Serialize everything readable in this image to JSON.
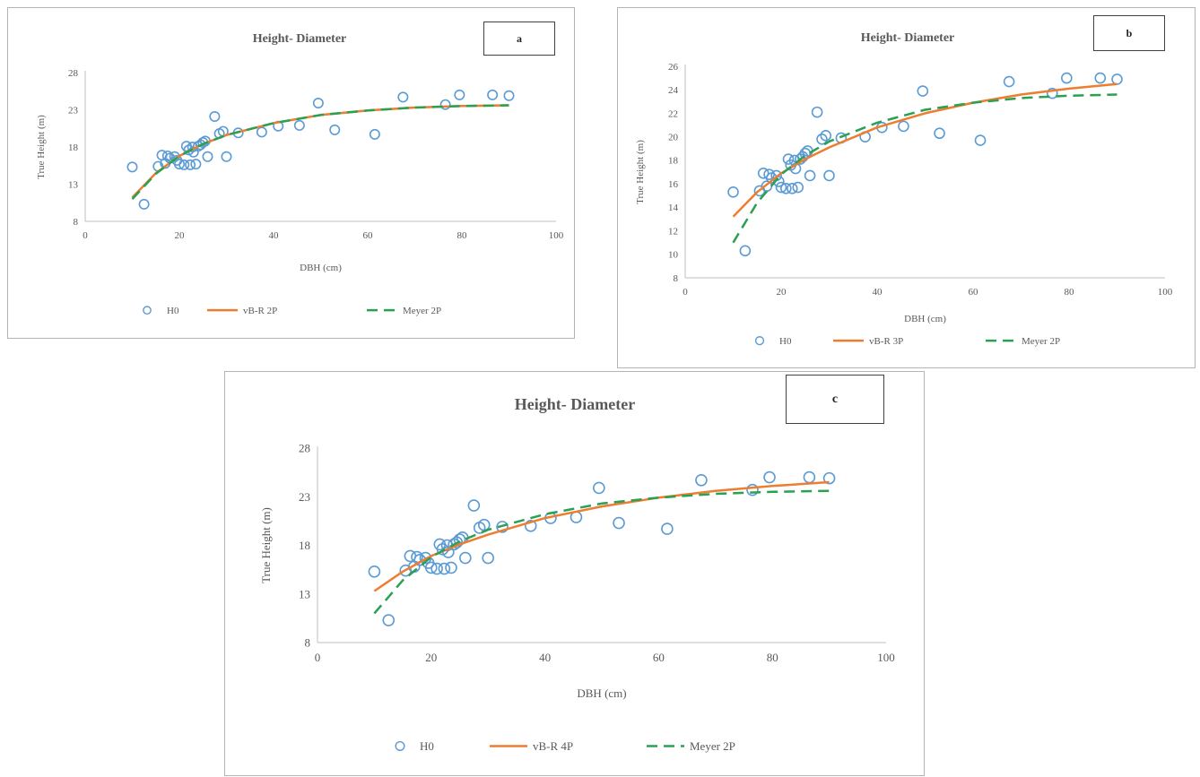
{
  "colors": {
    "points": "#5b9bd5",
    "vbr": "#ed7d31",
    "meyer": "#2aa052",
    "axis": "#bfbfbf",
    "text": "#595959"
  },
  "chart_data": [
    {
      "type": "scatter",
      "panel_label": "a",
      "title": "Height- Diameter",
      "xlabel": "DBH (cm)",
      "ylabel": "True Height (m)",
      "xlim": [
        0,
        100
      ],
      "ylim": [
        8,
        28
      ],
      "x_ticks": [
        "0",
        "20",
        "40",
        "60",
        "80",
        "100"
      ],
      "y_ticks": [
        "8",
        "13",
        "18",
        "23",
        "28"
      ],
      "grid": false,
      "legend_position": "bottom",
      "series": [
        {
          "name": "H0",
          "kind": "points",
          "points": [
            [
              10,
              15.3
            ],
            [
              12.5,
              10.3
            ],
            [
              15.5,
              15.4
            ],
            [
              16.3,
              16.9
            ],
            [
              17,
              15.8
            ],
            [
              17.5,
              16.8
            ],
            [
              18,
              16.5
            ],
            [
              19,
              16.7
            ],
            [
              19.5,
              16.2
            ],
            [
              20,
              15.7
            ],
            [
              21,
              15.6
            ],
            [
              21.5,
              18.1
            ],
            [
              22,
              17.6
            ],
            [
              22.3,
              15.6
            ],
            [
              22.8,
              18
            ],
            [
              23,
              17.3
            ],
            [
              23.5,
              15.7
            ],
            [
              24,
              18.1
            ],
            [
              24.5,
              18.3
            ],
            [
              25,
              18.6
            ],
            [
              25.5,
              18.8
            ],
            [
              26,
              16.7
            ],
            [
              27.5,
              22.1
            ],
            [
              28.5,
              19.8
            ],
            [
              29.3,
              20.1
            ],
            [
              30,
              16.7
            ],
            [
              32.5,
              19.9
            ],
            [
              37.5,
              20
            ],
            [
              41,
              20.8
            ],
            [
              45.5,
              20.9
            ],
            [
              49.5,
              23.9
            ],
            [
              53,
              20.3
            ],
            [
              61.5,
              19.7
            ],
            [
              67.5,
              24.7
            ],
            [
              76.5,
              23.7
            ],
            [
              79.5,
              25
            ],
            [
              86.5,
              25
            ],
            [
              90,
              24.9
            ]
          ]
        },
        {
          "name": "vB-R 2P",
          "kind": "line",
          "points": [
            [
              10,
              11.2
            ],
            [
              15,
              14.5
            ],
            [
              20,
              16.8
            ],
            [
              25,
              18.4
            ],
            [
              30,
              19.6
            ],
            [
              40,
              21.2
            ],
            [
              50,
              22.3
            ],
            [
              60,
              22.9
            ],
            [
              70,
              23.3
            ],
            [
              80,
              23.5
            ],
            [
              90,
              23.6
            ]
          ]
        },
        {
          "name": "Meyer 2P",
          "kind": "dash",
          "points": [
            [
              10,
              11
            ],
            [
              15,
              14.4
            ],
            [
              20,
              16.8
            ],
            [
              25,
              18.4
            ],
            [
              30,
              19.6
            ],
            [
              40,
              21.2
            ],
            [
              50,
              22.3
            ],
            [
              60,
              22.9
            ],
            [
              70,
              23.3
            ],
            [
              80,
              23.5
            ],
            [
              90,
              23.6
            ]
          ]
        }
      ]
    },
    {
      "type": "scatter",
      "panel_label": "b",
      "title": "Height- Diameter",
      "xlabel": "DBH (cm)",
      "ylabel": "True Height (m)",
      "xlim": [
        0,
        100
      ],
      "ylim": [
        8,
        26
      ],
      "x_ticks": [
        "0",
        "20",
        "40",
        "60",
        "80",
        "100"
      ],
      "y_ticks": [
        "8",
        "10",
        "12",
        "14",
        "16",
        "18",
        "20",
        "22",
        "24",
        "26"
      ],
      "grid": false,
      "legend_position": "bottom",
      "series": [
        {
          "name": "H0",
          "kind": "points",
          "points": [
            [
              10,
              15.3
            ],
            [
              12.5,
              10.3
            ],
            [
              15.5,
              15.4
            ],
            [
              16.3,
              16.9
            ],
            [
              17,
              15.8
            ],
            [
              17.5,
              16.8
            ],
            [
              18,
              16.5
            ],
            [
              19,
              16.7
            ],
            [
              19.5,
              16.2
            ],
            [
              20,
              15.7
            ],
            [
              21,
              15.6
            ],
            [
              21.5,
              18.1
            ],
            [
              22,
              17.6
            ],
            [
              22.3,
              15.6
            ],
            [
              22.8,
              18
            ],
            [
              23,
              17.3
            ],
            [
              23.5,
              15.7
            ],
            [
              24,
              18.1
            ],
            [
              24.5,
              18.3
            ],
            [
              25,
              18.6
            ],
            [
              25.5,
              18.8
            ],
            [
              26,
              16.7
            ],
            [
              27.5,
              22.1
            ],
            [
              28.5,
              19.8
            ],
            [
              29.3,
              20.1
            ],
            [
              30,
              16.7
            ],
            [
              32.5,
              19.9
            ],
            [
              37.5,
              20
            ],
            [
              41,
              20.8
            ],
            [
              45.5,
              20.9
            ],
            [
              49.5,
              23.9
            ],
            [
              53,
              20.3
            ],
            [
              61.5,
              19.7
            ],
            [
              67.5,
              24.7
            ],
            [
              76.5,
              23.7
            ],
            [
              79.5,
              25
            ],
            [
              86.5,
              25
            ],
            [
              90,
              24.9
            ]
          ]
        },
        {
          "name": "vB-R 3P",
          "kind": "line",
          "points": [
            [
              10,
              13.2
            ],
            [
              15,
              15.3
            ],
            [
              20,
              16.9
            ],
            [
              25,
              18.1
            ],
            [
              30,
              19.1
            ],
            [
              40,
              20.8
            ],
            [
              50,
              22
            ],
            [
              60,
              22.9
            ],
            [
              70,
              23.6
            ],
            [
              80,
              24.1
            ],
            [
              90,
              24.5
            ]
          ]
        },
        {
          "name": "Meyer 2P",
          "kind": "dash",
          "points": [
            [
              10,
              11
            ],
            [
              15,
              14.4
            ],
            [
              20,
              16.8
            ],
            [
              25,
              18.4
            ],
            [
              30,
              19.6
            ],
            [
              40,
              21.2
            ],
            [
              50,
              22.3
            ],
            [
              60,
              22.9
            ],
            [
              70,
              23.3
            ],
            [
              80,
              23.5
            ],
            [
              90,
              23.6
            ]
          ]
        }
      ]
    },
    {
      "type": "scatter",
      "panel_label": "c",
      "title": "Height- Diameter",
      "xlabel": "DBH (cm)",
      "ylabel": "True Height (m)",
      "xlim": [
        0,
        100
      ],
      "ylim": [
        8,
        28
      ],
      "x_ticks": [
        "0",
        "20",
        "40",
        "60",
        "80",
        "100"
      ],
      "y_ticks": [
        "8",
        "13",
        "18",
        "23",
        "28"
      ],
      "grid": false,
      "legend_position": "bottom",
      "series": [
        {
          "name": "H0",
          "kind": "points",
          "points": [
            [
              10,
              15.3
            ],
            [
              12.5,
              10.3
            ],
            [
              15.5,
              15.4
            ],
            [
              16.3,
              16.9
            ],
            [
              17,
              15.8
            ],
            [
              17.5,
              16.8
            ],
            [
              18,
              16.5
            ],
            [
              19,
              16.7
            ],
            [
              19.5,
              16.2
            ],
            [
              20,
              15.7
            ],
            [
              21,
              15.6
            ],
            [
              21.5,
              18.1
            ],
            [
              22,
              17.6
            ],
            [
              22.3,
              15.6
            ],
            [
              22.8,
              18
            ],
            [
              23,
              17.3
            ],
            [
              23.5,
              15.7
            ],
            [
              24,
              18.1
            ],
            [
              24.5,
              18.3
            ],
            [
              25,
              18.6
            ],
            [
              25.5,
              18.8
            ],
            [
              26,
              16.7
            ],
            [
              27.5,
              22.1
            ],
            [
              28.5,
              19.8
            ],
            [
              29.3,
              20.1
            ],
            [
              30,
              16.7
            ],
            [
              32.5,
              19.9
            ],
            [
              37.5,
              20
            ],
            [
              41,
              20.8
            ],
            [
              45.5,
              20.9
            ],
            [
              49.5,
              23.9
            ],
            [
              53,
              20.3
            ],
            [
              61.5,
              19.7
            ],
            [
              67.5,
              24.7
            ],
            [
              76.5,
              23.7
            ],
            [
              79.5,
              25
            ],
            [
              86.5,
              25
            ],
            [
              90,
              24.9
            ]
          ]
        },
        {
          "name": "vB-R 4P",
          "kind": "line",
          "points": [
            [
              10,
              13.3
            ],
            [
              15,
              15.3
            ],
            [
              20,
              16.9
            ],
            [
              25,
              18.1
            ],
            [
              30,
              19.1
            ],
            [
              40,
              20.8
            ],
            [
              50,
              22
            ],
            [
              60,
              22.9
            ],
            [
              70,
              23.6
            ],
            [
              80,
              24.1
            ],
            [
              90,
              24.5
            ]
          ]
        },
        {
          "name": "Meyer 2P",
          "kind": "dash",
          "points": [
            [
              10,
              11
            ],
            [
              15,
              14.4
            ],
            [
              20,
              16.8
            ],
            [
              25,
              18.4
            ],
            [
              30,
              19.6
            ],
            [
              40,
              21.2
            ],
            [
              50,
              22.3
            ],
            [
              60,
              22.9
            ],
            [
              70,
              23.3
            ],
            [
              80,
              23.5
            ],
            [
              90,
              23.6
            ]
          ]
        }
      ]
    }
  ]
}
